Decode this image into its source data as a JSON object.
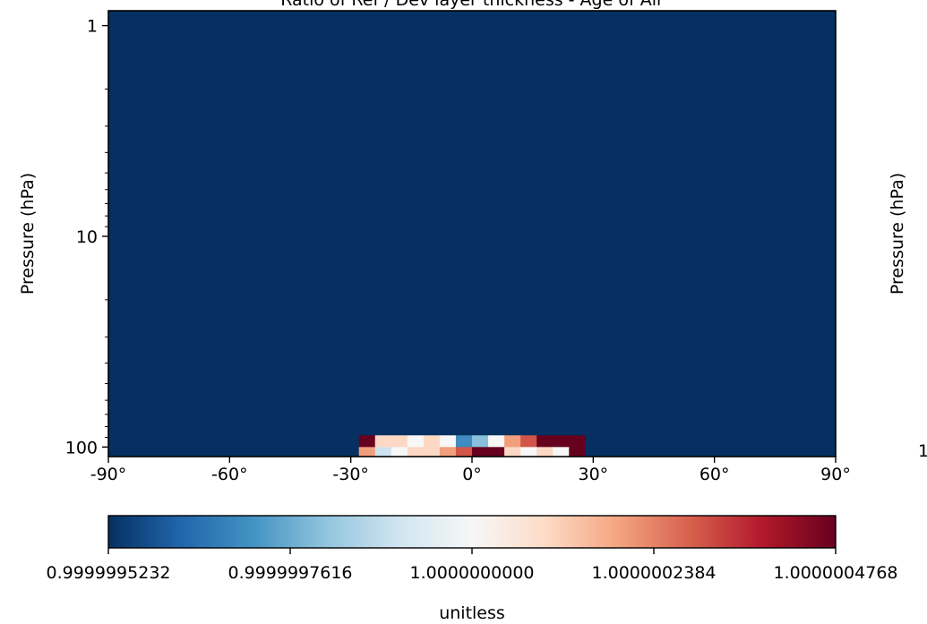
{
  "chart_data": {
    "type": "heatmap",
    "title": "Ratio of Ref / Dev layer thickness - Age of Air",
    "xlabel": "",
    "ylabel": "Pressure (hPa)",
    "x_ticks": [
      {
        "value": -90,
        "label": "-90°"
      },
      {
        "value": -60,
        "label": "-60°"
      },
      {
        "value": -30,
        "label": "-30°"
      },
      {
        "value": 0,
        "label": "0°"
      },
      {
        "value": 30,
        "label": "30°"
      },
      {
        "value": 60,
        "label": "60°"
      },
      {
        "value": 90,
        "label": "90°"
      }
    ],
    "y_ticks": [
      {
        "value": 1,
        "label": "1"
      },
      {
        "value": 10,
        "label": "10"
      },
      {
        "value": 100,
        "label": "100"
      }
    ],
    "xlim": [
      -90,
      90
    ],
    "ylim_log": [
      0.85,
      111
    ],
    "y_scale": "log",
    "y_inverted": true,
    "background_value": 0.9999995232,
    "lat_edges": [
      -28,
      -24,
      -20,
      -16,
      -12,
      -8,
      -4,
      0,
      4,
      8,
      12,
      16,
      20,
      24,
      28
    ],
    "rows": [
      {
        "p_top": 88,
        "p_bottom": 100,
        "values": [
          1.0000004768,
          1.0000001,
          1.0000001,
          1.0,
          1.0000001,
          1.0,
          0.9999997,
          0.9999998,
          1.0,
          1.0000002,
          1.0000003,
          1.0000004768,
          1.0000004768,
          1.0000004768
        ]
      },
      {
        "p_top": 100,
        "p_bottom": 111,
        "values": [
          1.0000002,
          0.9999999,
          1.0,
          1.0000001,
          1.0000001,
          1.0000002,
          1.0000003,
          1.0000004768,
          1.0000004768,
          1.0000001,
          1.0,
          1.0000001,
          1.0,
          1.0000004768
        ]
      }
    ],
    "colorbar": {
      "colormap": "RdBu_r",
      "vmin": 0.9999995232,
      "vmax": 1.0000004768,
      "tick_values": [
        0.9999995232,
        0.9999997616,
        1.0,
        1.0000002384,
        1.0000004768
      ],
      "tick_labels": [
        "0.9999995232",
        "0.9999997616",
        "1.0000000000",
        "1.0000002384",
        "1.0000004768"
      ],
      "label": "unitless"
    },
    "second_panel": {
      "ylabel": "Pressure (hPa)",
      "y_tick_label_partial": "1"
    }
  }
}
